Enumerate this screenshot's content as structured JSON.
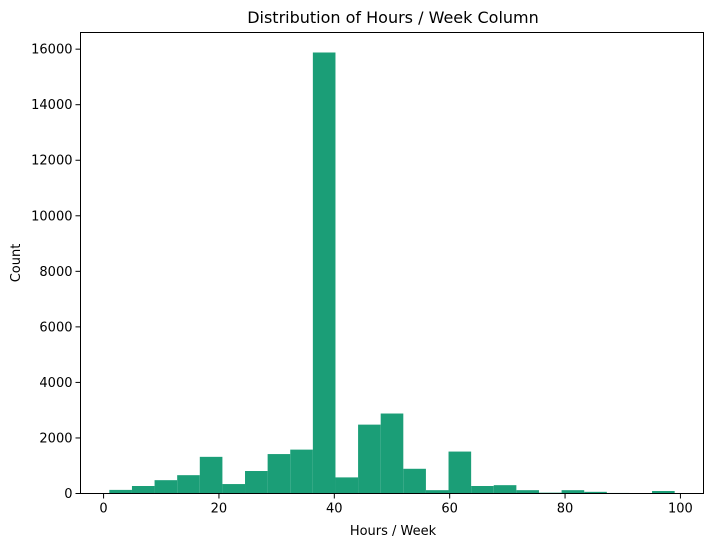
{
  "chart_data": {
    "type": "bar",
    "title": "Distribution of Hours / Week Column",
    "xlabel": "Hours / Week",
    "ylabel": "Count",
    "xlim": [
      -4,
      104
    ],
    "ylim": [
      0,
      16600
    ],
    "xticks": [
      0,
      20,
      40,
      60,
      80,
      100
    ],
    "yticks": [
      0,
      2000,
      4000,
      6000,
      8000,
      10000,
      12000,
      14000,
      16000
    ],
    "bin_edges": [
      1,
      4.92,
      8.84,
      12.76,
      16.68,
      20.6,
      24.52,
      28.44,
      32.36,
      36.28,
      40.2,
      44.12,
      48.04,
      51.96,
      55.88,
      59.8,
      63.72,
      67.64,
      71.56,
      75.48,
      79.4,
      83.32,
      87.24,
      91.16,
      95.08,
      99
    ],
    "values": [
      130,
      270,
      480,
      660,
      1320,
      340,
      810,
      1420,
      1580,
      15880,
      580,
      2480,
      2880,
      890,
      120,
      1510,
      270,
      300,
      120,
      30,
      120,
      60,
      20,
      0,
      90
    ],
    "bar_color": "#1b9e77",
    "grid": false,
    "legend": "none"
  }
}
